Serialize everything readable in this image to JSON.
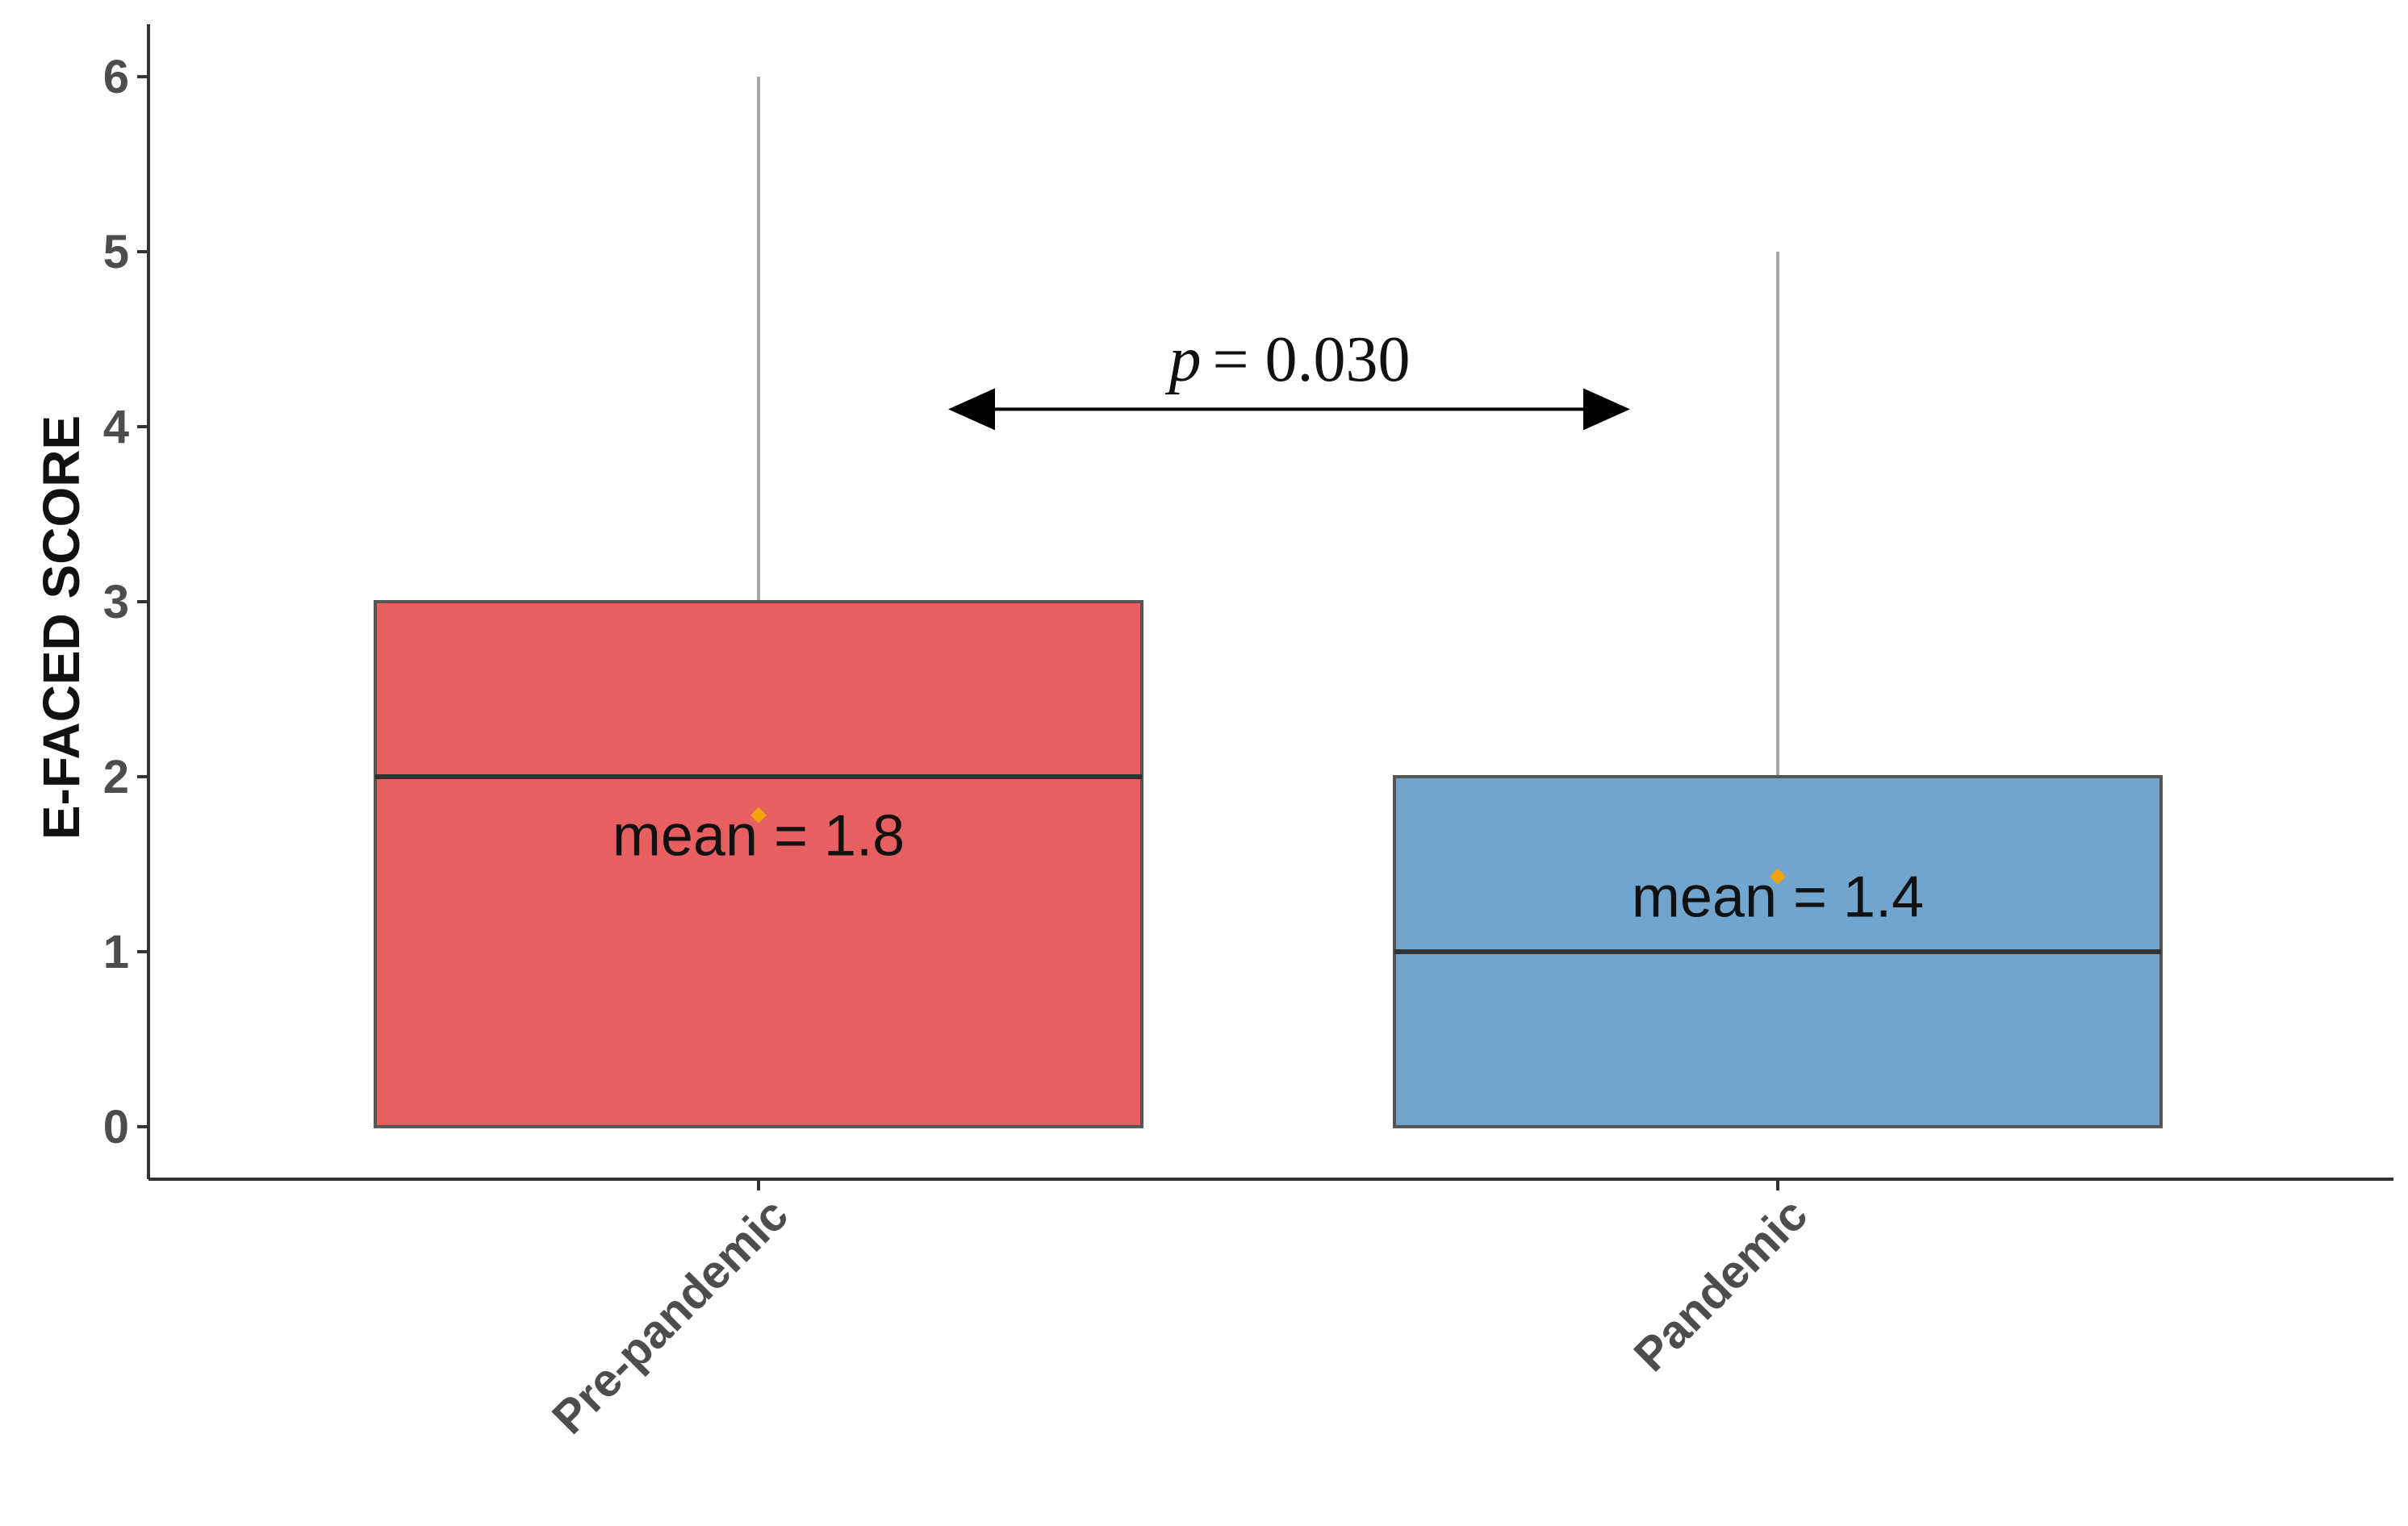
{
  "chart_data": {
    "type": "boxplot",
    "ylabel": "E-FACED SCORE",
    "ylim": [
      -0.3,
      6.3
    ],
    "y_ticks": [
      "0",
      "1",
      "2",
      "3",
      "4",
      "5",
      "6"
    ],
    "categories": [
      "Pre-pandemic",
      "Pandemic"
    ],
    "boxes": [
      {
        "category": "Pre-pandemic",
        "min": 0,
        "q1": 0,
        "median": 2,
        "q3": 3,
        "max": 6,
        "mean": 1.78,
        "mean_label": "mean = 1.8",
        "color": "#e85f62"
      },
      {
        "category": "Pandemic",
        "min": 0,
        "q1": 0,
        "median": 1,
        "q3": 2,
        "max": 5,
        "mean": 1.43,
        "mean_label": "mean = 1.4",
        "color": "#72a5cd"
      }
    ],
    "mean_marker_color": "#f0a30a",
    "annotation": {
      "p_symbol": "p",
      "p_text": "= 0.030",
      "arrow_y": 4.1
    },
    "grid": false,
    "legend": "none"
  }
}
